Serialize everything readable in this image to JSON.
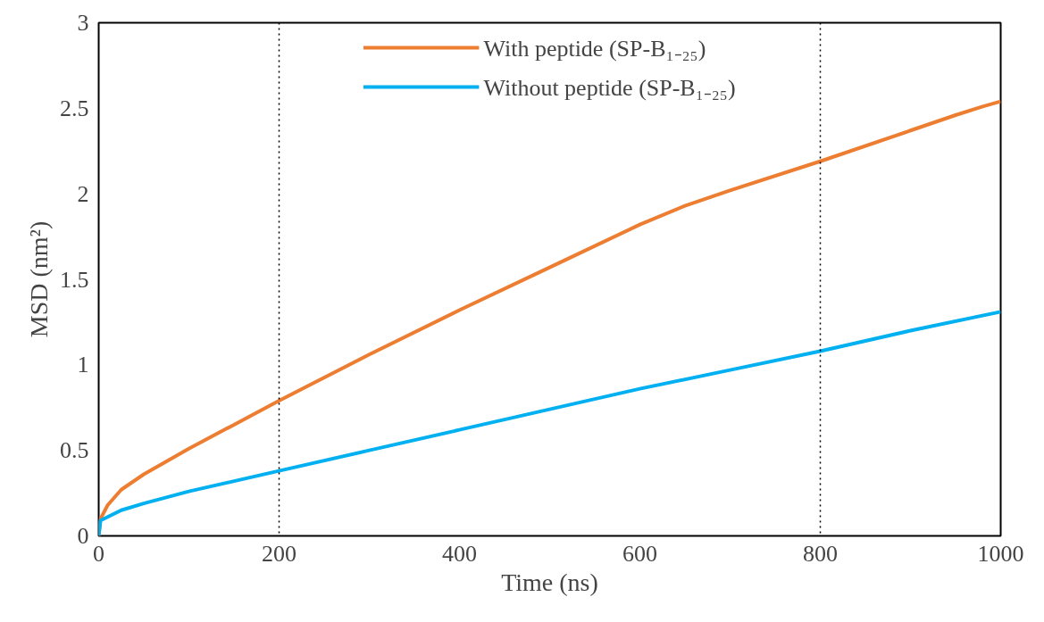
{
  "chart_data": {
    "type": "line",
    "xlabel": "Time (ns)",
    "ylabel": "MSD (nm²)",
    "xlim": [
      0,
      1000
    ],
    "xticks": [
      0,
      200,
      400,
      600,
      800,
      1000
    ],
    "ylim": [
      0,
      3
    ],
    "yticks": [
      0,
      0.5,
      1,
      1.5,
      2,
      2.5,
      3
    ],
    "grid": false,
    "legend": "top",
    "marker": "none",
    "line_style": "solid",
    "ref_lines": [
      {
        "axis": "x",
        "value": 200,
        "color": "#000000",
        "line_style": "dotted"
      },
      {
        "axis": "x",
        "value": 800,
        "color": "#000000",
        "line_style": "dotted"
      }
    ],
    "series": [
      {
        "name": "With peptide (SP-B₁₋₂₅)",
        "color": "#ed7d31",
        "x": [
          0,
          2,
          10,
          25,
          50,
          100,
          150,
          200,
          300,
          400,
          500,
          600,
          650,
          700,
          800,
          900,
          950,
          980,
          1000
        ],
        "values": [
          0,
          0.1,
          0.18,
          0.27,
          0.36,
          0.51,
          0.65,
          0.79,
          1.06,
          1.32,
          1.57,
          1.82,
          1.93,
          2.02,
          2.19,
          2.37,
          2.46,
          2.51,
          2.54
        ]
      },
      {
        "name": "Without peptide (SP-B₁₋₂₅)",
        "color": "#00b0f0",
        "x": [
          0,
          2,
          25,
          50,
          100,
          200,
          300,
          400,
          500,
          600,
          700,
          800,
          900,
          1000
        ],
        "values": [
          0,
          0.09,
          0.15,
          0.19,
          0.26,
          0.38,
          0.5,
          0.62,
          0.74,
          0.86,
          0.97,
          1.08,
          1.2,
          1.31
        ]
      }
    ]
  }
}
